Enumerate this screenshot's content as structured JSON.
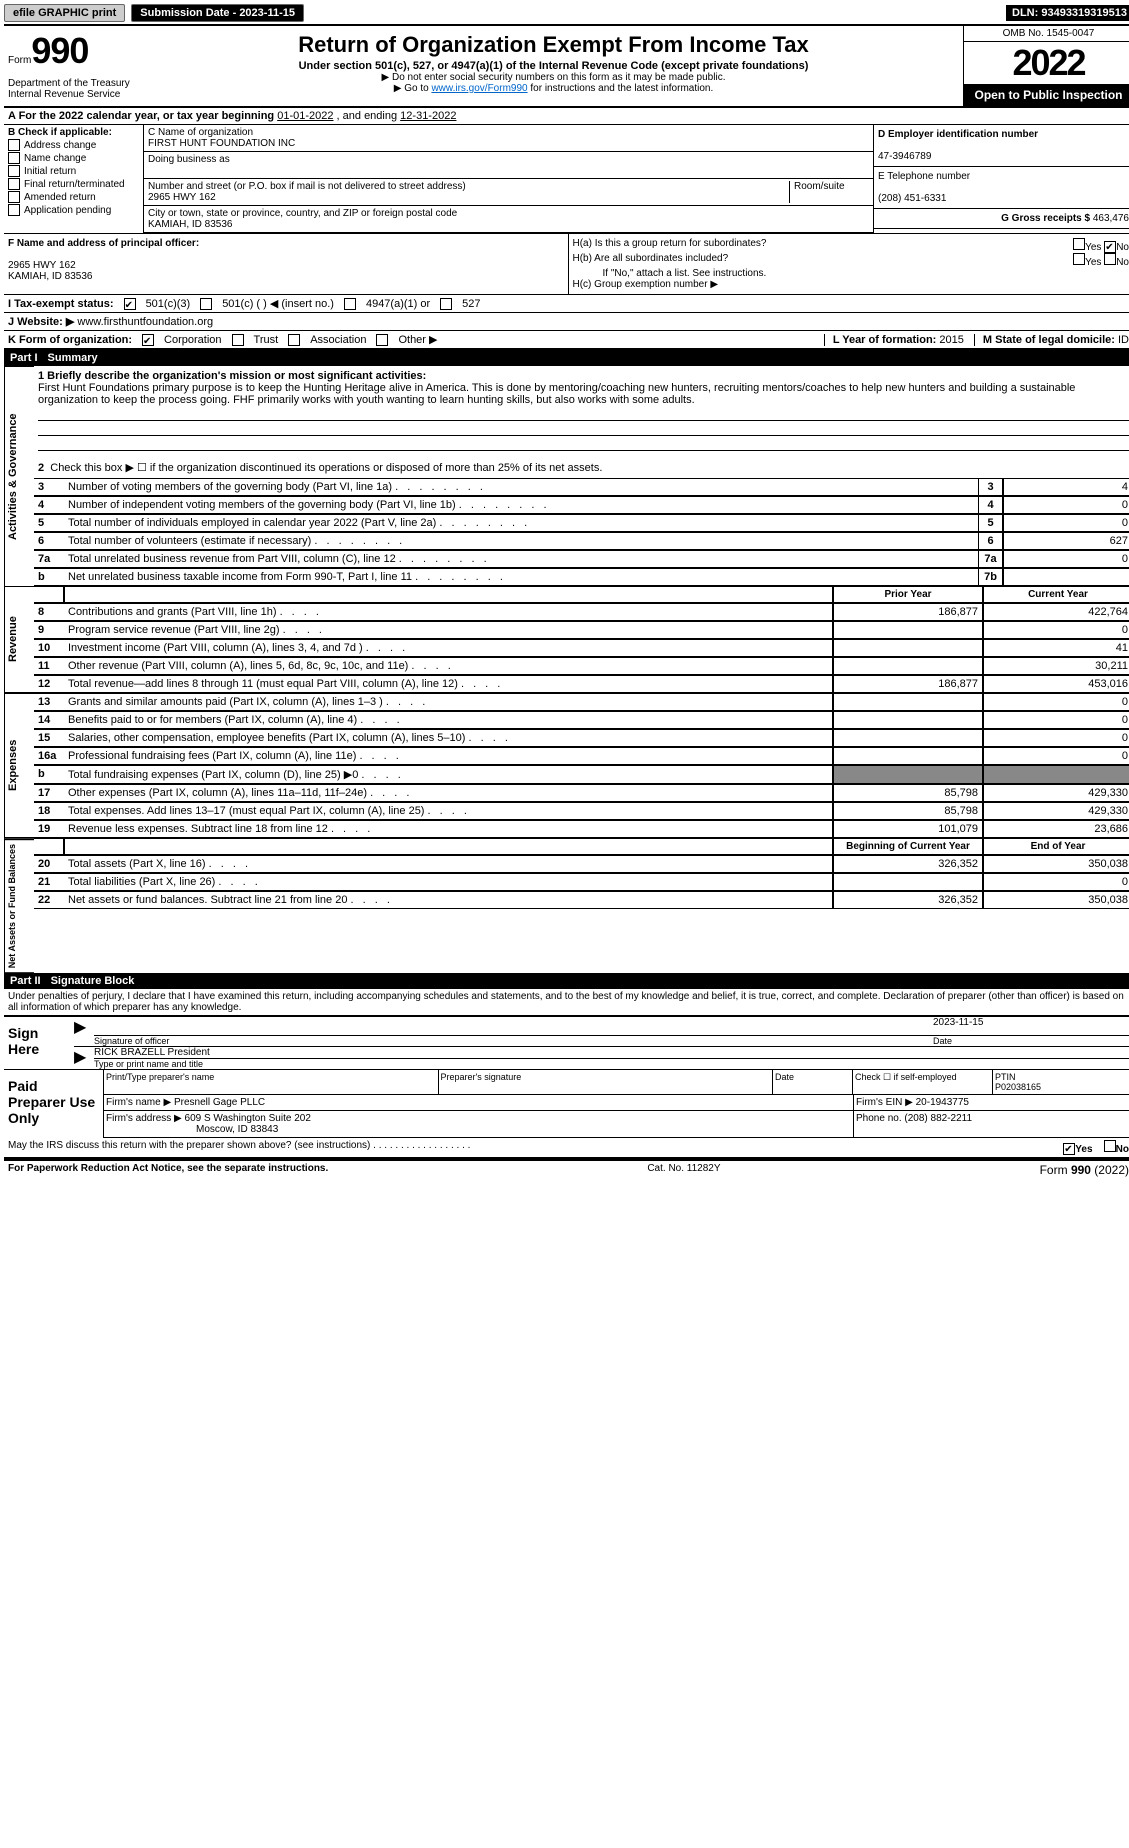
{
  "top": {
    "efile": "efile GRAPHIC print",
    "submission_label": "Submission Date - 2023-11-15",
    "dln_label": "DLN: 93493319319513"
  },
  "header": {
    "form_label": "Form",
    "form_num": "990",
    "dept": "Department of the Treasury\nInternal Revenue Service",
    "title": "Return of Organization Exempt From Income Tax",
    "sub1": "Under section 501(c), 527, or 4947(a)(1) of the Internal Revenue Code (except private foundations)",
    "sub2": "▶ Do not enter social security numbers on this form as it may be made public.",
    "sub3_pre": "▶ Go to ",
    "sub3_link": "www.irs.gov/Form990",
    "sub3_post": " for instructions and the latest information.",
    "omb": "OMB No. 1545-0047",
    "year": "2022",
    "open": "Open to Public Inspection"
  },
  "rowA": {
    "text_pre": "A For the 2022 calendar year, or tax year beginning ",
    "begin": "01-01-2022",
    "mid": " , and ending ",
    "end": "12-31-2022"
  },
  "sectionB": {
    "header": "B Check if applicable:",
    "items": [
      "Address change",
      "Name change",
      "Initial return",
      "Final return/terminated",
      "Amended return",
      "Application pending"
    ]
  },
  "sectionC": {
    "name_label": "C Name of organization",
    "name": "FIRST HUNT FOUNDATION INC",
    "dba_label": "Doing business as",
    "addr_label": "Number and street (or P.O. box if mail is not delivered to street address)",
    "room_label": "Room/suite",
    "addr": "2965 HWY 162",
    "city_label": "City or town, state or province, country, and ZIP or foreign postal code",
    "city": "KAMIAH, ID  83536"
  },
  "sectionD": {
    "label": "D Employer identification number",
    "ein": "47-3946789",
    "tel_label": "E Telephone number",
    "tel": "(208) 451-6331",
    "gross_label": "G Gross receipts $",
    "gross": "463,476"
  },
  "sectionF": {
    "label": "F Name and address of principal officer:",
    "addr1": "2965 HWY 162",
    "addr2": "KAMIAH, ID  83536"
  },
  "sectionH": {
    "a_label": "H(a)  Is this a group return for subordinates?",
    "b_label": "H(b)  Are all subordinates included?",
    "b_note": "If \"No,\" attach a list. See instructions.",
    "c_label": "H(c)  Group exemption number ▶"
  },
  "rowI": {
    "label": "I  Tax-exempt status:",
    "opts": [
      "501(c)(3)",
      "501(c) ( ) ◀ (insert no.)",
      "4947(a)(1) or",
      "527"
    ]
  },
  "rowJ": {
    "label": "J  Website: ▶",
    "url": "www.firsthuntfoundation.org"
  },
  "rowK": {
    "label": "K Form of organization:",
    "opts": [
      "Corporation",
      "Trust",
      "Association",
      "Other ▶"
    ]
  },
  "rowL": {
    "label": "L Year of formation:",
    "val": "2015"
  },
  "rowM": {
    "label": "M State of legal domicile:",
    "val": "ID"
  },
  "part1": {
    "header_roman": "Part I",
    "header_text": "Summary",
    "briefly_label": "1  Briefly describe the organization's mission or most significant activities:",
    "briefly": "First Hunt Foundations primary purpose is to keep the Hunting Heritage alive in America. This is done by mentoring/coaching new hunters, recruiting mentors/coaches to help new hunters and building a sustainable organization to keep the process going. FHF primarily works with youth wanting to learn hunting skills, but also works with some adults.",
    "line2": "Check this box ▶ ☐  if the organization discontinued its operations or disposed of more than 25% of its net assets.",
    "gov_label": "Activities & Governance",
    "rev_label": "Revenue",
    "exp_label": "Expenses",
    "net_label": "Net Assets or Fund Balances",
    "lines_gov": [
      {
        "n": "3",
        "d": "Number of voting members of the governing body (Part VI, line 1a)",
        "b": "3",
        "v": "4"
      },
      {
        "n": "4",
        "d": "Number of independent voting members of the governing body (Part VI, line 1b)",
        "b": "4",
        "v": "0"
      },
      {
        "n": "5",
        "d": "Total number of individuals employed in calendar year 2022 (Part V, line 2a)",
        "b": "5",
        "v": "0"
      },
      {
        "n": "6",
        "d": "Total number of volunteers (estimate if necessary)",
        "b": "6",
        "v": "627"
      },
      {
        "n": "7a",
        "d": "Total unrelated business revenue from Part VIII, column (C), line 12",
        "b": "7a",
        "v": "0"
      },
      {
        "n": "b",
        "d": "Net unrelated business taxable income from Form 990-T, Part I, line 11",
        "b": "7b",
        "v": ""
      }
    ],
    "col_prior": "Prior Year",
    "col_curr": "Current Year",
    "lines_rev": [
      {
        "n": "8",
        "d": "Contributions and grants (Part VIII, line 1h)",
        "p": "186,877",
        "c": "422,764"
      },
      {
        "n": "9",
        "d": "Program service revenue (Part VIII, line 2g)",
        "p": "",
        "c": "0"
      },
      {
        "n": "10",
        "d": "Investment income (Part VIII, column (A), lines 3, 4, and 7d )",
        "p": "",
        "c": "41"
      },
      {
        "n": "11",
        "d": "Other revenue (Part VIII, column (A), lines 5, 6d, 8c, 9c, 10c, and 11e)",
        "p": "",
        "c": "30,211"
      },
      {
        "n": "12",
        "d": "Total revenue—add lines 8 through 11 (must equal Part VIII, column (A), line 12)",
        "p": "186,877",
        "c": "453,016"
      }
    ],
    "lines_exp": [
      {
        "n": "13",
        "d": "Grants and similar amounts paid (Part IX, column (A), lines 1–3 )",
        "p": "",
        "c": "0"
      },
      {
        "n": "14",
        "d": "Benefits paid to or for members (Part IX, column (A), line 4)",
        "p": "",
        "c": "0"
      },
      {
        "n": "15",
        "d": "Salaries, other compensation, employee benefits (Part IX, column (A), lines 5–10)",
        "p": "",
        "c": "0"
      },
      {
        "n": "16a",
        "d": "Professional fundraising fees (Part IX, column (A), line 11e)",
        "p": "",
        "c": "0"
      },
      {
        "n": "b",
        "d": "Total fundraising expenses (Part IX, column (D), line 25) ▶0",
        "p": "—",
        "c": "—"
      },
      {
        "n": "17",
        "d": "Other expenses (Part IX, column (A), lines 11a–11d, 11f–24e)",
        "p": "85,798",
        "c": "429,330"
      },
      {
        "n": "18",
        "d": "Total expenses. Add lines 13–17 (must equal Part IX, column (A), line 25)",
        "p": "85,798",
        "c": "429,330"
      },
      {
        "n": "19",
        "d": "Revenue less expenses. Subtract line 18 from line 12",
        "p": "101,079",
        "c": "23,686"
      }
    ],
    "col_begin": "Beginning of Current Year",
    "col_end": "End of Year",
    "lines_net": [
      {
        "n": "20",
        "d": "Total assets (Part X, line 16)",
        "p": "326,352",
        "c": "350,038"
      },
      {
        "n": "21",
        "d": "Total liabilities (Part X, line 26)",
        "p": "",
        "c": "0"
      },
      {
        "n": "22",
        "d": "Net assets or fund balances. Subtract line 21 from line 20",
        "p": "326,352",
        "c": "350,038"
      }
    ]
  },
  "part2": {
    "header_roman": "Part II",
    "header_text": "Signature Block",
    "penalties": "Under penalties of perjury, I declare that I have examined this return, including accompanying schedules and statements, and to the best of my knowledge and belief, it is true, correct, and complete. Declaration of preparer (other than officer) is based on all information of which preparer has any knowledge.",
    "sign_here": "Sign Here",
    "sig_officer": "Signature of officer",
    "sig_date": "Date",
    "sig_date_val": "2023-11-15",
    "sig_name": "RICK BRAZELL President",
    "sig_name_label": "Type or print name and title",
    "paid_label": "Paid Preparer Use Only",
    "prep_name_label": "Print/Type preparer's name",
    "prep_sig_label": "Preparer's signature",
    "date_label": "Date",
    "check_if": "Check ☐ if self-employed",
    "ptin_label": "PTIN",
    "ptin": "P02038165",
    "firm_name_label": "Firm's name    ▶",
    "firm_name": "Presnell Gage PLLC",
    "firm_ein_label": "Firm's EIN ▶",
    "firm_ein": "20-1943775",
    "firm_addr_label": "Firm's address ▶",
    "firm_addr1": "609 S Washington Suite 202",
    "firm_addr2": "Moscow, ID  83843",
    "phone_label": "Phone no.",
    "phone": "(208) 882-2211",
    "may_irs": "May the IRS discuss this return with the preparer shown above? (see instructions)",
    "yes": "Yes",
    "no": "No"
  },
  "footer": {
    "paperwork": "For Paperwork Reduction Act Notice, see the separate instructions.",
    "cat": "Cat. No. 11282Y",
    "form": "Form 990 (2022)"
  }
}
